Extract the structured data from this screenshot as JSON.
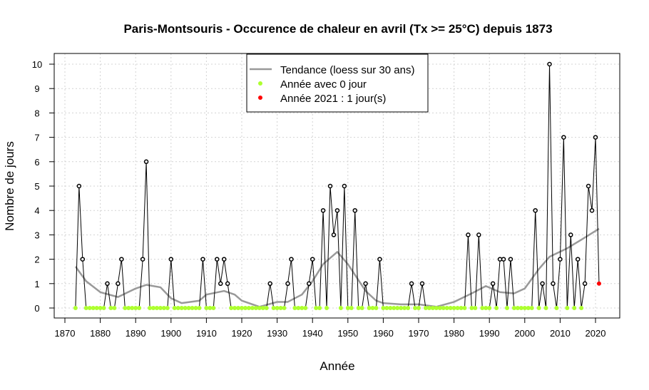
{
  "chart_data": {
    "type": "line",
    "title": "Paris-Montsouris - Occurence de chaleur en avril (Tx >= 25°C) depuis 1873",
    "xlabel": "Année",
    "ylabel": "Nombre de jours",
    "xlim": [
      1870,
      2023
    ],
    "ylim": [
      0,
      10
    ],
    "xticks": [
      1870,
      1880,
      1890,
      1900,
      1910,
      1920,
      1930,
      1940,
      1950,
      1960,
      1970,
      1980,
      1990,
      2000,
      2010,
      2020
    ],
    "yticks": [
      0,
      1,
      2,
      3,
      4,
      5,
      6,
      7,
      8,
      9,
      10
    ],
    "grid": true,
    "legend_position": "top-center",
    "legend": [
      {
        "label": "Tendance (loess sur 30 ans)",
        "kind": "line",
        "color": "#999999"
      },
      {
        "label": "Année avec 0 jour",
        "kind": "point",
        "color": "#adff2f"
      },
      {
        "label": "Année 2021 : 1 jour(s)",
        "kind": "point",
        "color": "#ff0000"
      }
    ],
    "colors": {
      "series": "#000000",
      "zero": "#adff2f",
      "highlight": "#ff0000",
      "trend": "#999999"
    },
    "start_year": 1873,
    "values": [
      0,
      5,
      2,
      0,
      0,
      0,
      0,
      0,
      0,
      1,
      0,
      0,
      1,
      2,
      0,
      0,
      0,
      0,
      0,
      2,
      6,
      0,
      0,
      0,
      0,
      0,
      0,
      2,
      0,
      0,
      0,
      0,
      0,
      0,
      0,
      0,
      2,
      0,
      0,
      0,
      2,
      1,
      2,
      1,
      0,
      0,
      0,
      0,
      0,
      0,
      0,
      0,
      0,
      0,
      0,
      1,
      0,
      0,
      0,
      0,
      1,
      2,
      0,
      0,
      0,
      0,
      1,
      2,
      0,
      0,
      4,
      0,
      5,
      3,
      4,
      0,
      5,
      0,
      0,
      4,
      0,
      0,
      1,
      0,
      0,
      0,
      2,
      0,
      0,
      0,
      0,
      0,
      0,
      0,
      0,
      1,
      0,
      0,
      1,
      0,
      0,
      0,
      0,
      0,
      0,
      0,
      0,
      0,
      0,
      0,
      0,
      3,
      0,
      0,
      3,
      0,
      0,
      0,
      1,
      0,
      2,
      2,
      0,
      2,
      0,
      0,
      0,
      0,
      0,
      0,
      4,
      0,
      1,
      0,
      10,
      1,
      0,
      2,
      7,
      0,
      3,
      0,
      2,
      0,
      1,
      5,
      4,
      7,
      1
    ],
    "highlight_year": 2021,
    "trend": {
      "years": [
        1873,
        1876,
        1880,
        1885,
        1890,
        1893,
        1897,
        1900,
        1903,
        1908,
        1910,
        1915,
        1918,
        1920,
        1925,
        1930,
        1933,
        1937,
        1940,
        1943,
        1947,
        1950,
        1955,
        1958,
        1960,
        1965,
        1970,
        1975,
        1980,
        1985,
        1989,
        1993,
        1997,
        2000,
        2004,
        2007,
        2012,
        2016,
        2021
      ],
      "values": [
        1.7,
        1.1,
        0.65,
        0.45,
        0.8,
        0.95,
        0.85,
        0.4,
        0.2,
        0.3,
        0.55,
        0.7,
        0.55,
        0.3,
        0.05,
        0.25,
        0.25,
        0.55,
        1.1,
        1.8,
        2.3,
        1.8,
        0.7,
        0.3,
        0.2,
        0.15,
        0.15,
        0.05,
        0.25,
        0.6,
        0.9,
        0.65,
        0.6,
        0.8,
        1.6,
        2.1,
        2.45,
        2.8,
        3.25
      ]
    }
  }
}
